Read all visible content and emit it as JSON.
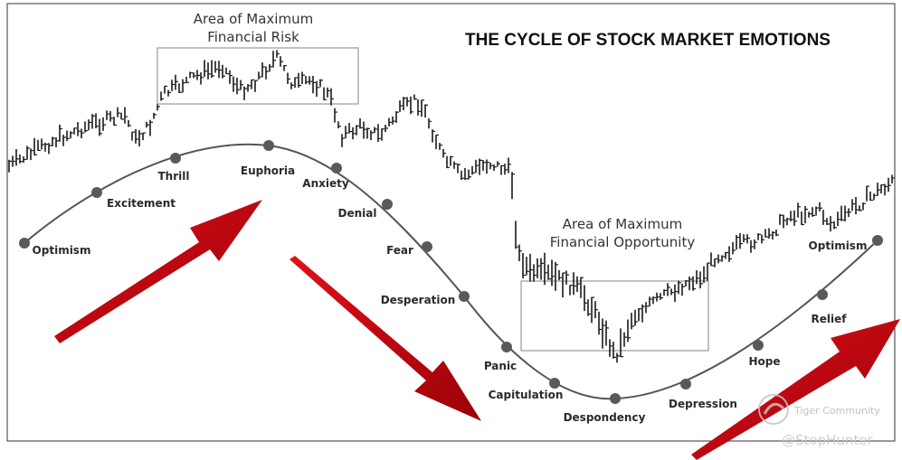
{
  "title": "THE CYCLE OF STOCK MARKET EMOTIONS",
  "risk_area": {
    "line1": "Area of Maximum",
    "line2": "Financial Risk"
  },
  "opportunity_area": {
    "line1": "Area of Maximum",
    "line2": "Financial Opportunity"
  },
  "emotions": [
    "Optimism",
    "Excitement",
    "Thrill",
    "Euphoria",
    "Anxiety",
    "Denial",
    "Fear",
    "Desperation",
    "Panic",
    "Capitulation",
    "Despondency",
    "Depression",
    "Hope",
    "Relief",
    "Optimism"
  ],
  "watermark": {
    "community": "Tiger Community",
    "handle": "@StopHunter"
  },
  "colors": {
    "arrow": "#c8000a",
    "curve": "#555555",
    "dot": "#5a5a5a",
    "price": "#1a1a1a",
    "box": "#999999",
    "frame": "#333333"
  }
}
